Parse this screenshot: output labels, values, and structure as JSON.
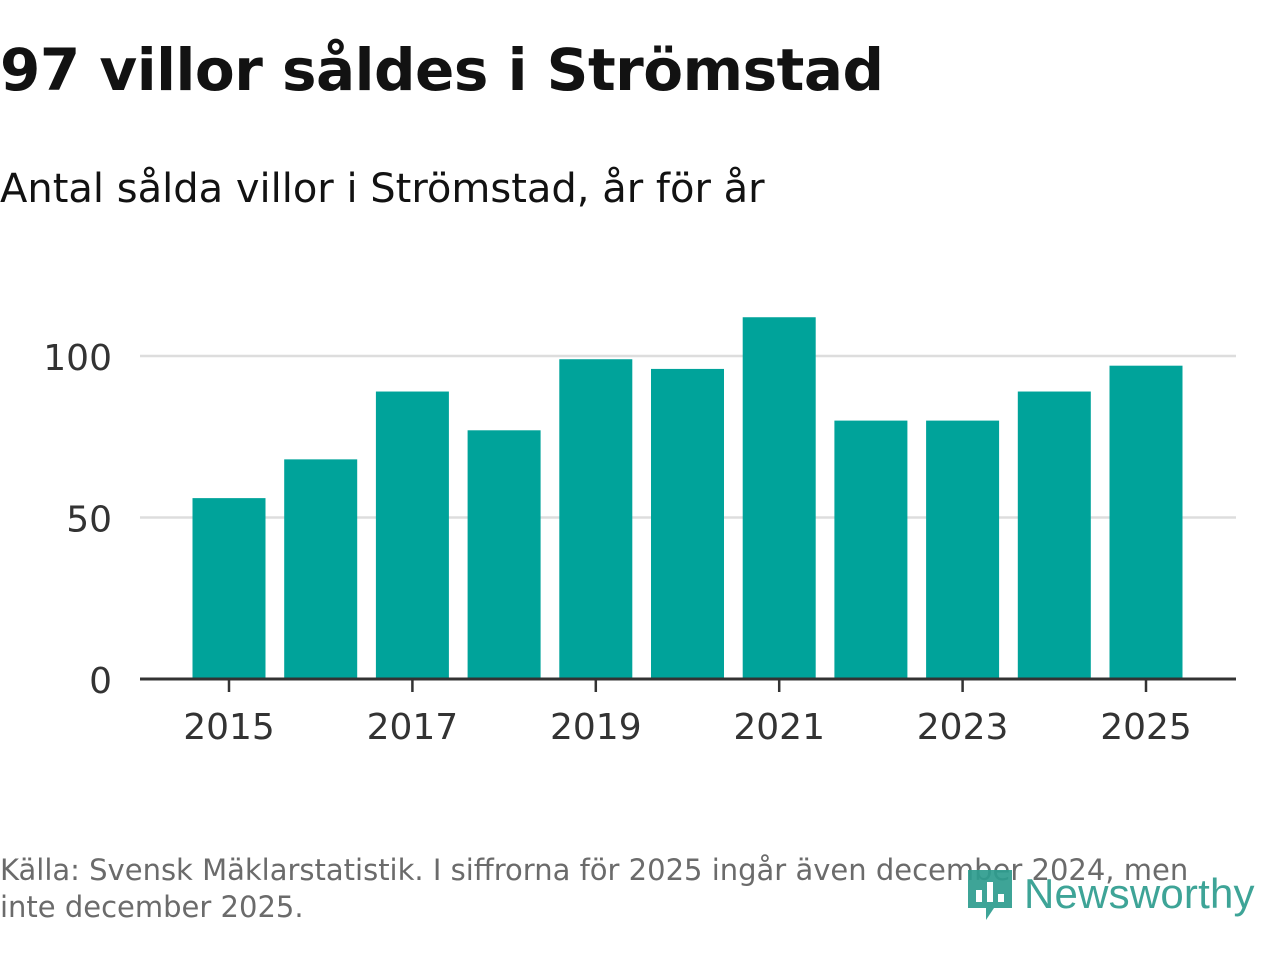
{
  "title": "97 villor såldes i Strömstad",
  "subtitle": "Antal sålda villor i Strömstad, år för år",
  "footer": "Källa: Svensk Mäklarstatistik. I siffrorna för 2025 ingår även december 2024, men inte december 2025.",
  "logo": {
    "text": "Newsworthy",
    "icon": "newsworthy-logo-icon"
  },
  "colors": {
    "bar": "#00a39a",
    "grid": "#dddddd",
    "axis": "#333333",
    "text": "#333333",
    "footer": "#6b6b6b",
    "logo": "#2e9d8f"
  },
  "chart_data": {
    "type": "bar",
    "title": "97 villor såldes i Strömstad",
    "subtitle": "Antal sålda villor i Strömstad, år för år",
    "xlabel": "",
    "ylabel": "",
    "categories": [
      "2015",
      "2016",
      "2017",
      "2018",
      "2019",
      "2020",
      "2021",
      "2022",
      "2023",
      "2024",
      "2025"
    ],
    "values": [
      56,
      68,
      89,
      77,
      99,
      96,
      112,
      80,
      80,
      89,
      97
    ],
    "ylim": [
      0,
      110
    ],
    "yticks": [
      0,
      50,
      100
    ],
    "xtick_labels": [
      "2015",
      "2017",
      "2019",
      "2021",
      "2023",
      "2025"
    ],
    "grid": true
  }
}
